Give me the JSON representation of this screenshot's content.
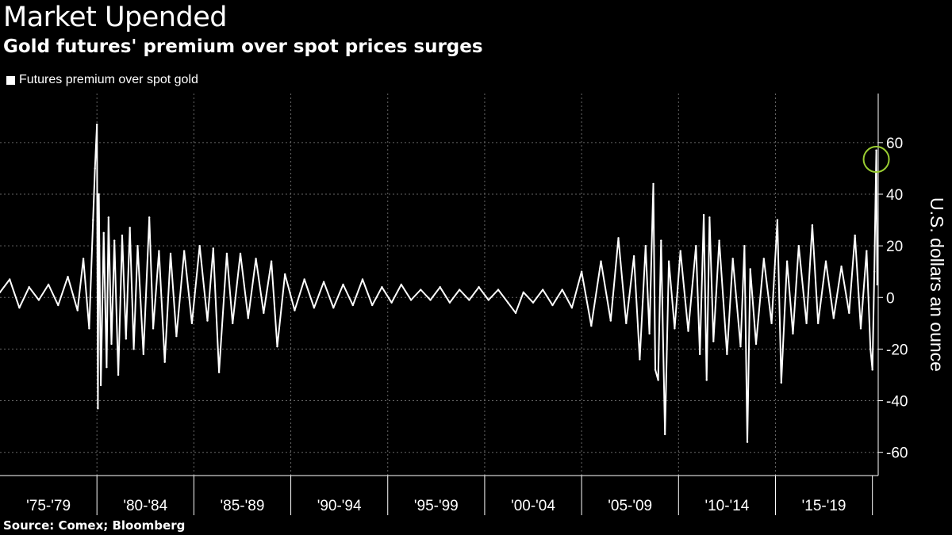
{
  "page": {
    "title": "Market Upended",
    "subtitle": "Gold futures' premium over spot prices surges",
    "source": "Source: Comex; Bloomberg"
  },
  "colors": {
    "background": "#000000",
    "series": "#ffffff",
    "grid": "#666666",
    "highlight_circle": "#9acd32"
  },
  "chart_data": {
    "type": "line",
    "title": "Market Upended",
    "subtitle": "Gold futures' premium over spot prices surges",
    "xlabel": "",
    "ylabel": "U.S. dollars an ounce",
    "categories": [
      "'75-'79",
      "'80-'84",
      "'85-'89",
      "'90-'94",
      "'95-'99",
      "'00-'04",
      "'05-'09",
      "'10-'14",
      "'15-'19"
    ],
    "xlim": [
      1975,
      2020.3
    ],
    "ylim": [
      -69,
      79
    ],
    "yticks": [
      60,
      40,
      20,
      0,
      -20,
      -40,
      -60
    ],
    "grid": true,
    "legend_position": "top-left",
    "highlight": {
      "x": 2020.2,
      "y": 53.5,
      "shape": "circle"
    },
    "series": [
      {
        "name": "Futures premium over spot gold",
        "points": [
          [
            1975.0,
            2
          ],
          [
            1975.5,
            7
          ],
          [
            1976.0,
            -4
          ],
          [
            1976.5,
            4
          ],
          [
            1977.0,
            -1
          ],
          [
            1977.5,
            5
          ],
          [
            1978.0,
            -3
          ],
          [
            1978.5,
            8
          ],
          [
            1979.0,
            -5
          ],
          [
            1979.3,
            15
          ],
          [
            1979.6,
            -12
          ],
          [
            1979.8,
            30
          ],
          [
            1979.9,
            50
          ],
          [
            1980.0,
            67
          ],
          [
            1980.05,
            -43
          ],
          [
            1980.1,
            40
          ],
          [
            1980.2,
            -34
          ],
          [
            1980.35,
            25
          ],
          [
            1980.5,
            -27
          ],
          [
            1980.6,
            31
          ],
          [
            1980.75,
            -18
          ],
          [
            1980.9,
            22
          ],
          [
            1981.1,
            -30
          ],
          [
            1981.3,
            24
          ],
          [
            1981.5,
            -16
          ],
          [
            1981.7,
            27
          ],
          [
            1981.9,
            -20
          ],
          [
            1982.1,
            20
          ],
          [
            1982.4,
            -22
          ],
          [
            1982.7,
            31
          ],
          [
            1982.9,
            -12
          ],
          [
            1983.2,
            18
          ],
          [
            1983.5,
            -25
          ],
          [
            1983.8,
            17
          ],
          [
            1984.1,
            -15
          ],
          [
            1984.5,
            18
          ],
          [
            1984.9,
            -10
          ],
          [
            1985.3,
            20
          ],
          [
            1985.7,
            -9
          ],
          [
            1986.0,
            19
          ],
          [
            1986.3,
            -29
          ],
          [
            1986.7,
            17
          ],
          [
            1987.0,
            -10
          ],
          [
            1987.4,
            17
          ],
          [
            1987.8,
            -8
          ],
          [
            1988.2,
            15
          ],
          [
            1988.6,
            -6
          ],
          [
            1989.0,
            14
          ],
          [
            1989.3,
            -19
          ],
          [
            1989.7,
            9
          ],
          [
            1990.2,
            -5
          ],
          [
            1990.7,
            7
          ],
          [
            1991.2,
            -4
          ],
          [
            1991.7,
            6
          ],
          [
            1992.2,
            -4
          ],
          [
            1992.7,
            5
          ],
          [
            1993.2,
            -3
          ],
          [
            1993.7,
            7
          ],
          [
            1994.2,
            -3
          ],
          [
            1994.7,
            4
          ],
          [
            1995.2,
            -2
          ],
          [
            1995.7,
            5
          ],
          [
            1996.2,
            -1
          ],
          [
            1996.7,
            3
          ],
          [
            1997.2,
            -1
          ],
          [
            1997.7,
            4
          ],
          [
            1998.2,
            -2
          ],
          [
            1998.7,
            3
          ],
          [
            1999.2,
            -1
          ],
          [
            1999.7,
            4
          ],
          [
            2000.2,
            -1
          ],
          [
            2000.7,
            3
          ],
          [
            2001.2,
            -2
          ],
          [
            2001.6,
            -6
          ],
          [
            2002.0,
            2
          ],
          [
            2002.5,
            -2
          ],
          [
            2003.0,
            3
          ],
          [
            2003.5,
            -3
          ],
          [
            2004.0,
            3
          ],
          [
            2004.5,
            -4
          ],
          [
            2005.0,
            10
          ],
          [
            2005.5,
            -11
          ],
          [
            2006.0,
            14
          ],
          [
            2006.5,
            -9
          ],
          [
            2006.9,
            23
          ],
          [
            2007.3,
            -10
          ],
          [
            2007.7,
            16
          ],
          [
            2008.0,
            -24
          ],
          [
            2008.3,
            20
          ],
          [
            2008.5,
            -14
          ],
          [
            2008.7,
            44
          ],
          [
            2008.8,
            -28
          ],
          [
            2008.95,
            -32
          ],
          [
            2009.1,
            22
          ],
          [
            2009.3,
            -53
          ],
          [
            2009.5,
            14
          ],
          [
            2009.8,
            -12
          ],
          [
            2010.1,
            18
          ],
          [
            2010.5,
            -13
          ],
          [
            2010.9,
            20
          ],
          [
            2011.1,
            -22
          ],
          [
            2011.3,
            32
          ],
          [
            2011.45,
            -32
          ],
          [
            2011.6,
            31
          ],
          [
            2011.8,
            -17
          ],
          [
            2012.1,
            22
          ],
          [
            2012.5,
            -22
          ],
          [
            2012.8,
            15
          ],
          [
            2013.2,
            -19
          ],
          [
            2013.4,
            20
          ],
          [
            2013.55,
            -56
          ],
          [
            2013.7,
            11
          ],
          [
            2014.0,
            -18
          ],
          [
            2014.4,
            15
          ],
          [
            2014.8,
            -10
          ],
          [
            2015.1,
            30
          ],
          [
            2015.3,
            -33
          ],
          [
            2015.6,
            14
          ],
          [
            2015.9,
            -14
          ],
          [
            2016.2,
            20
          ],
          [
            2016.6,
            -10
          ],
          [
            2016.9,
            28
          ],
          [
            2017.2,
            -10
          ],
          [
            2017.6,
            14
          ],
          [
            2018.0,
            -8
          ],
          [
            2018.4,
            12
          ],
          [
            2018.8,
            -6
          ],
          [
            2019.1,
            24
          ],
          [
            2019.4,
            -12
          ],
          [
            2019.7,
            18
          ],
          [
            2019.9,
            -20
          ],
          [
            2020.0,
            -28
          ],
          [
            2020.1,
            10
          ],
          [
            2020.2,
            57
          ],
          [
            2020.25,
            5
          ]
        ]
      }
    ]
  }
}
